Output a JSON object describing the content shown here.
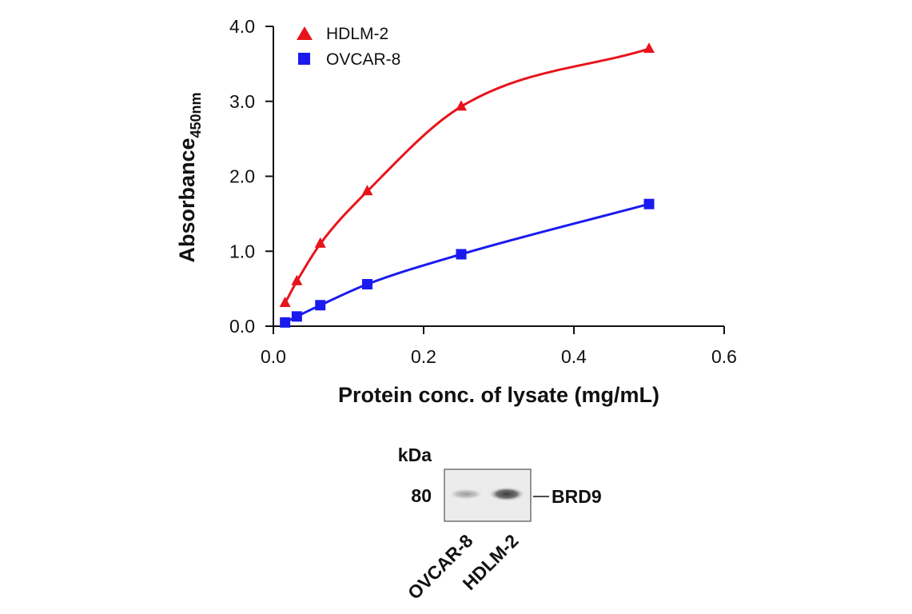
{
  "chart_data": {
    "type": "line",
    "xlabel": "Protein conc. of lysate (mg/mL)",
    "ylabel_main": "Absorbance",
    "ylabel_sub": "450nm",
    "xlim": [
      0,
      0.6
    ],
    "ylim": [
      0,
      4.0
    ],
    "x_ticks": [
      0.0,
      0.2,
      0.4,
      0.6
    ],
    "x_tick_labels": [
      "0.0",
      "0.2",
      "0.4",
      "0.6"
    ],
    "y_ticks": [
      0.0,
      1.0,
      2.0,
      3.0,
      4.0
    ],
    "y_tick_labels": [
      "0.0",
      "1.0",
      "2.0",
      "3.0",
      "4.0"
    ],
    "grid": false,
    "legend_position": "top-left",
    "series": [
      {
        "name": "HDLM-2",
        "marker": "triangle",
        "color": "#e8141c",
        "x": [
          0.0156,
          0.03125,
          0.0625,
          0.125,
          0.25,
          0.5
        ],
        "y": [
          0.31,
          0.6,
          1.1,
          1.8,
          2.93,
          3.7
        ]
      },
      {
        "name": "OVCAR-8",
        "marker": "square",
        "color": "#1a1aef",
        "x": [
          0.0156,
          0.03125,
          0.0625,
          0.125,
          0.25,
          0.5
        ],
        "y": [
          0.05,
          0.13,
          0.28,
          0.56,
          0.96,
          1.63
        ]
      }
    ]
  },
  "blot": {
    "kda_label": "kDa",
    "marker_value": "80",
    "band_label": "BRD9",
    "lanes": [
      "OVCAR-8",
      "HDLM-2"
    ]
  }
}
